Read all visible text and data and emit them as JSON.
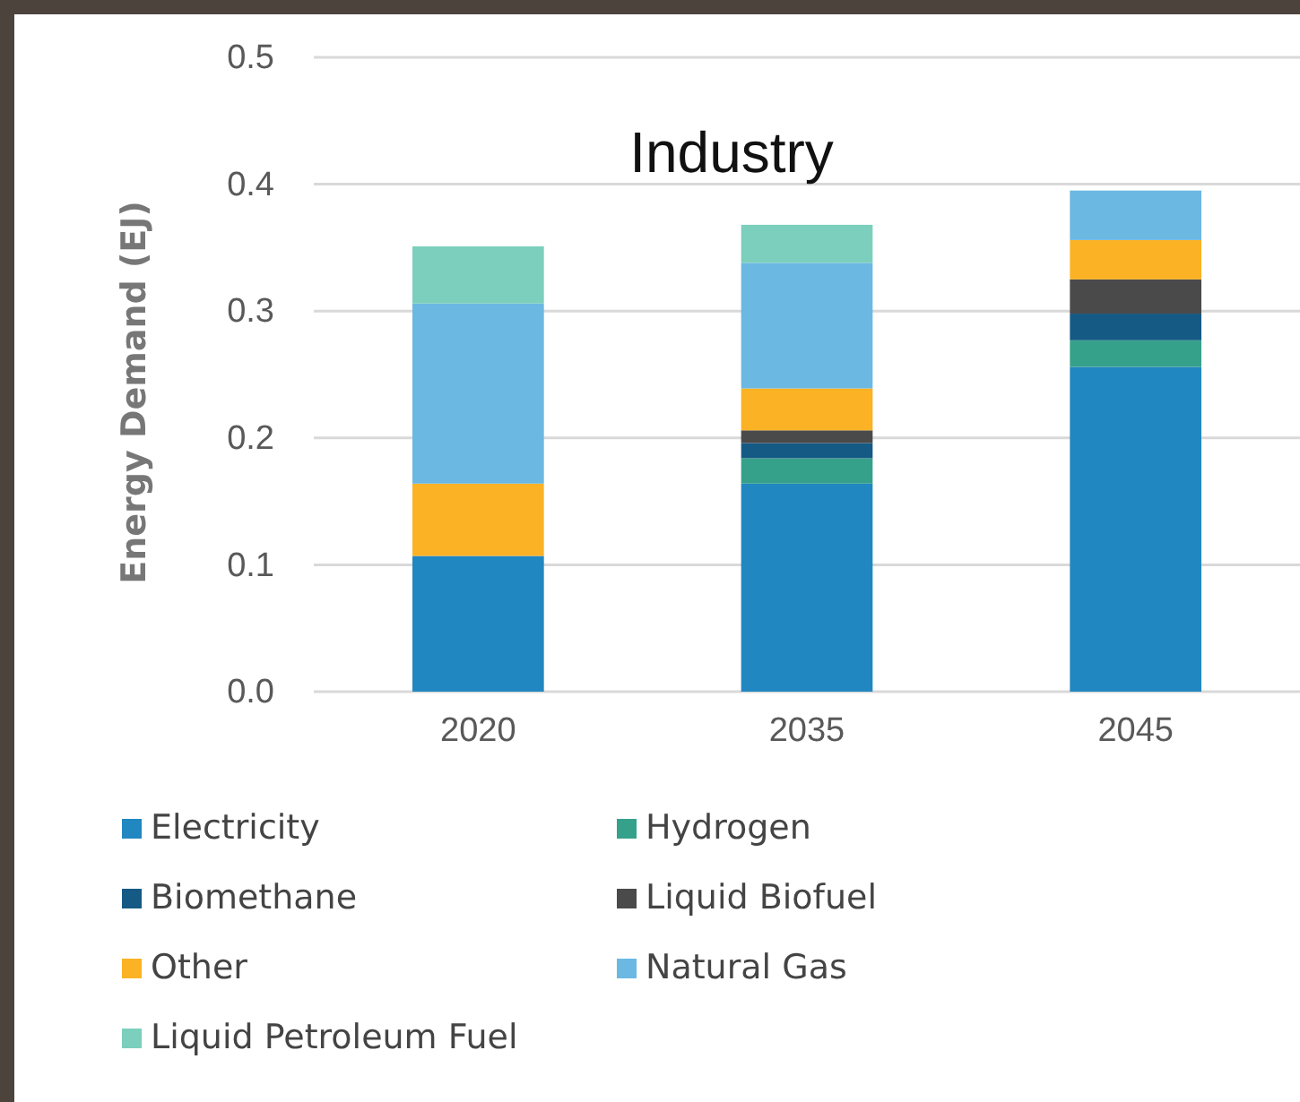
{
  "chart_data": {
    "type": "bar",
    "title": "Industry",
    "ylabel": "Energy Demand (EJ)",
    "categories": [
      "2020",
      "2035",
      "2045"
    ],
    "stacked": true,
    "series": [
      {
        "name": "Electricity",
        "color": "#2187c1",
        "values": [
          0.107,
          0.164,
          0.256
        ]
      },
      {
        "name": "Hydrogen",
        "color": "#36a18b",
        "values": [
          0,
          0.02,
          0.021
        ]
      },
      {
        "name": "Biomethane",
        "color": "#155a84",
        "values": [
          0,
          0.012,
          0.021
        ]
      },
      {
        "name": "Liquid Biofuel",
        "color": "#4a4a4a",
        "values": [
          0,
          0.01,
          0.027
        ]
      },
      {
        "name": "Other",
        "color": "#fbb224",
        "values": [
          0.057,
          0.033,
          0.031
        ]
      },
      {
        "name": "Natural Gas",
        "color": "#6bb8e3",
        "values": [
          0.142,
          0.099,
          0.039
        ]
      },
      {
        "name": "Liquid Petroleum Fuel",
        "color": "#7ccfbc",
        "values": [
          0.045,
          0.03,
          0
        ]
      }
    ],
    "ylim": [
      0,
      0.5
    ],
    "yticks": [
      {
        "value": 0,
        "label": "0.0"
      },
      {
        "value": 0.1,
        "label": "0.1"
      },
      {
        "value": 0.2,
        "label": "0.2"
      },
      {
        "value": 0.3,
        "label": "0.3"
      },
      {
        "value": 0.4,
        "label": "0.4"
      },
      {
        "value": 0.5,
        "label": "0.5"
      }
    ],
    "grid": "y",
    "legend": "bottom"
  }
}
